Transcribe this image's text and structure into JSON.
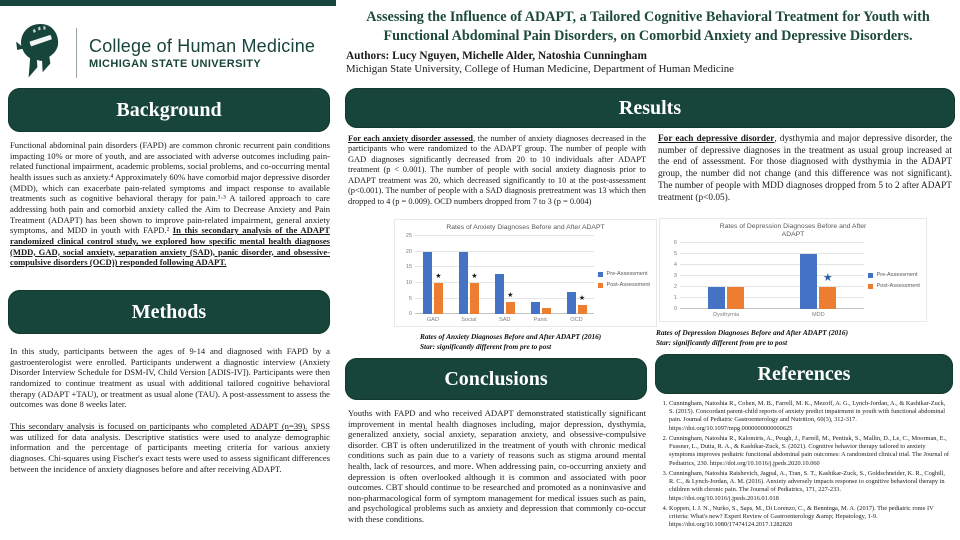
{
  "poster": {
    "logo": {
      "org": "College of Human Medicine",
      "university": "MICHIGAN STATE UNIVERSITY"
    },
    "title": "Assessing the Influence of ADAPT, a Tailored Cognitive Behavioral Treatment for Youth with Functional Abdominal Pain Disorders, on Comorbid Anxiety and Depressive Disorders.",
    "authors": "Authors: Lucy Nguyen, Michelle Alder, Natoshia Cunningham",
    "affiliation": "Michigan State University, College of Human Medicine, Department of Human Medicine",
    "colors": {
      "msu_green": "#18453B",
      "title_green": "#1E4B3C",
      "bar_blue": "#4472C4",
      "bar_orange": "#ED7D31"
    }
  },
  "sections": {
    "background": {
      "heading": "Background",
      "body": "Functional abdominal pain disorders (FAPD) are common chronic recurrent pain conditions impacting 10% or more of youth, and are associated with adverse outcomes including pain-related functional impairment, academic problems, social problems, and co-occurring mental health issues such as anxiety.⁴ Approximately 60% have comorbid major depressive disorder (MDD), which can exacerbate pain-related symptoms and impact response to available treatments such as cognitive behavioral therapy for pain.¹·³ A tailored approach to care addressing both pain and comorbid anxiety called the Aim to Decrease Anxiety and Pain Treatment (ADAPT) has been shown to improve pain-related impairment, general anxiety symptoms, and MDD in youth with FAPD.² ",
      "emphasis": "In this secondary analysis of the ADAPT randomized clinical control study, we explored how specific mental health diagnoses (MDD, GAD, social anxiety, separation anxiety (SAD), panic disorder, and obsessive-compulsive disorders (OCD)) responded following ADAPT."
    },
    "methods": {
      "heading": "Methods",
      "para1": "In this study, participants between the ages of 9-14 and diagnosed with FAPD by a gastroenterologist were enrolled. Participants underwent a diagnostic interview (Anxiety Disorder Interview Schedule for DSM-IV, Child Version [ADIS-IV]). Participants were then randomized to continue treatment as usual with additional tailored cognitive behavioral therapy (ADAPT +TAU), or treatment as usual alone (TAU). A post-assessment to assess the outcomes was done 8 weeks later.",
      "para2_lead": "This secondary analysis is focused on participants who completed ADAPT (n=39).",
      "para2_rest": " SPSS was utilized for data analysis. Descriptive statistics were used to analyze demographic information and the percentage of participants meeting criteria for various anxiety diagnoses. Chi-squares using Fischer's exact tests were used to assess significant differences between the incidence of anxiety diagnoses before and after receiving ADAPT."
    },
    "results": {
      "heading": "Results",
      "anxiety_lead": "For each anxiety disorder assessed",
      "anxiety_rest": ", the number of anxiety diagnoses decreased in the participants who were randomized to the ADAPT group. The number of people with GAD diagnoses significantly decreased from 20 to 10 individuals after ADAPT treatment (p < 0.001). The number of people with social anxiety diagnosis prior to ADAPT treatment was 20, which decreased significantly to 10 at the post-assessment (p<0.001). The number of people with a SAD diagnosis pretreatment was 13 which then dropped to 4 (p = 0.009). OCD numbers dropped from 7 to 3 (p = 0.004)",
      "depression_lead": "For each depressive disorder",
      "depression_rest": ", dysthymia and major depressive disorder, the number of depressive diagnoses in the treatment as usual group increased at the end of assessment. For those diagnosed with dysthymia in the ADAPT group, the number did not change (and this difference was not significant). The number of people with MDD diagnoses dropped from 5 to 2 after ADAPT treatment (p<0.05).",
      "anxiety_caption1": "Rates of Anxiety Diagnoses Before and After ADAPT (2016)",
      "anxiety_caption2": "Star: significantly different from pre to post",
      "depression_caption1": "Rates of Depression Diagnoses Before and After ADAPT (2016)",
      "depression_caption2": "Star: significantly different from pre to post"
    },
    "conclusions": {
      "heading": "Conclusions",
      "body": "Youths with FAPD and who received ADAPT demonstrated statistically significant improvement in mental health diagnoses including, major depression, dysthymia, generalized anxiety, social anxiety, separation anxiety, and obsessive-compulsive disorder. CBT is often underutilized in the treatment of youth with chronic medical conditions such as pain due to a variety of reasons such as stigma around mental health, lack of resources, and more. When addressing pain, co-occurring anxiety and depression is often overlooked although it is common and associated with poor outcomes. CBT should continue to be researched and promoted as a noninvasive and non-pharmacological form of symptom management for medical issues such as pain, and psychological problems such as anxiety and depression that commonly co-occur with these conditions."
    },
    "references": {
      "heading": "References",
      "items": [
        "Cunningham, Natoshia R., Cohen, M. B., Farrell, M. K., Mezoff, A. G., Lynch-Jordan, A., & Kashikar-Zuck, S. (2015). Concordant parent-child reports of anxiety predict impairment in youth with functional abdominal pain. Journal of Pediatric Gastroenterology and Nutrition, 60(3), 312-317. https://doi.org/10.1097/mpg.0000000000000625",
        "Cunningham, Natoshia R., Kalomiris, A., Peugh, J., Farrell, M., Pentiuk, S., Mallin, D., Le, C., Moorman, E., Fussner, L., Dutta, R. A., & Kashikar-Zuck, S. (2021). Cognitive behavior therapy tailored to anxiety symptoms improves pediatric functional abdominal pain outcomes: A randomized clinical trial. The Journal of Pediatrics, 230. https://doi.org/10.1016/j.jpeds.2020.10.060",
        "Cunningham, Natoshia Raishevich, Jagpal, A., Tran, S. T., Kashikar-Zuck, S., Goldschneider, K. R., Coghill, R. C., & Lynch-Jordan, A. M. (2016). Anxiety adversely impacts response to cognitive behavioral therapy in children with chronic pain. The Journal of Pediatrics, 171, 227-233. https://doi.org/10.1016/j.jpeds.2016.01.018",
        "Koppen, I. J. N., Nurko, S., Saps, M., Di Lorenzo, C., & Benninga, M. A. (2017). The pediatric rome IV criteria: What's new? Expert Review of Gastroenterology &amp; Hepatology, 1-9. https://doi.org/10.1080/17474124.2017.1282820"
      ]
    }
  },
  "chart_data": [
    {
      "type": "bar",
      "title": "Rates of Anxiety Diagnoses Before and After ADAPT",
      "categories": [
        "GAD",
        "Social",
        "SAD",
        "Panic",
        "OCD"
      ],
      "series": [
        {
          "name": "Pre-Assessment",
          "color": "#4472C4",
          "values": [
            20,
            20,
            13,
            4,
            7
          ]
        },
        {
          "name": "Post-Assessment",
          "color": "#ED7D31",
          "values": [
            10,
            10,
            4,
            2,
            3
          ]
        }
      ],
      "significance_star_on_post": [
        true,
        true,
        true,
        false,
        true
      ],
      "star_color": "#1a1a1a",
      "ylim": [
        0,
        25
      ],
      "yticks": [
        0,
        5,
        10,
        15,
        20,
        25
      ],
      "grid": true,
      "legend_position": "right"
    },
    {
      "type": "bar",
      "title": "Rates of Depression Diagnoses Before and After\nADAPT",
      "categories": [
        "Dysthymia",
        "MDD"
      ],
      "series": [
        {
          "name": "Pre-Assessment",
          "color": "#4472C4",
          "values": [
            2,
            5
          ]
        },
        {
          "name": "Post-Assessment",
          "color": "#ED7D31",
          "values": [
            2,
            2
          ]
        }
      ],
      "significance_star_on_post": [
        false,
        true
      ],
      "star_color": "#2E5F9E",
      "ylim": [
        0,
        6
      ],
      "yticks": [
        0,
        1,
        2,
        3,
        4,
        5,
        6
      ],
      "grid": true,
      "legend_position": "right"
    }
  ]
}
